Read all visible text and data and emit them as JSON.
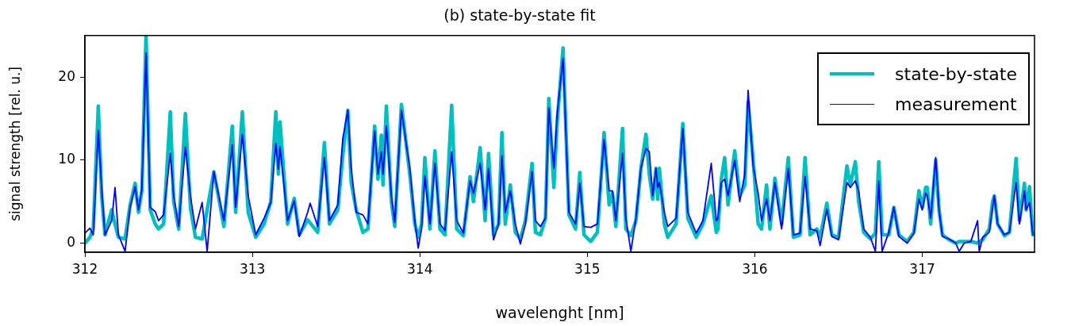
{
  "chart_data": {
    "type": "line",
    "title": "(b) state-by-state fit",
    "xlabel": "wavelenght [nm]",
    "ylabel": "signal strength [rel. u.]",
    "xlim": [
      312,
      317.67
    ],
    "ylim": [
      -1.1,
      25
    ],
    "xticks": [
      312,
      313,
      314,
      315,
      316,
      317
    ],
    "yticks": [
      0,
      10,
      20
    ],
    "grid": false,
    "legend": "top right",
    "marker": "none",
    "line_style": "solid",
    "series": [
      {
        "name": "state-by-state",
        "color": "#00bfbf",
        "x": [
          312.0,
          312.03,
          312.05,
          312.08,
          312.1,
          312.12,
          312.16,
          312.18,
          312.2,
          312.24,
          312.27,
          312.3,
          312.32,
          312.34,
          312.365,
          312.39,
          312.42,
          312.44,
          312.47,
          312.51,
          312.53,
          312.56,
          312.6,
          312.63,
          312.66,
          312.7,
          312.73,
          312.77,
          312.83,
          312.88,
          312.9,
          312.94,
          312.975,
          313.02,
          313.07,
          313.11,
          313.14,
          313.155,
          313.165,
          313.21,
          313.25,
          313.28,
          313.33,
          313.39,
          313.43,
          313.46,
          313.51,
          313.54,
          313.57,
          313.59,
          313.62,
          313.66,
          313.69,
          313.73,
          313.75,
          313.77,
          313.78,
          313.8,
          313.83,
          313.85,
          313.89,
          313.94,
          313.97,
          313.99,
          314.01,
          314.03,
          314.06,
          314.09,
          314.12,
          314.15,
          314.19,
          314.22,
          314.26,
          314.3,
          314.32,
          314.36,
          314.39,
          314.41,
          314.44,
          314.47,
          314.49,
          314.51,
          314.54,
          314.57,
          314.6,
          314.63,
          314.67,
          314.69,
          314.72,
          314.75,
          314.77,
          314.8,
          314.82,
          314.855,
          314.89,
          314.93,
          314.955,
          314.98,
          315.02,
          315.06,
          315.1,
          315.13,
          315.15,
          315.17,
          315.21,
          315.23,
          315.26,
          315.29,
          315.32,
          315.35,
          315.37,
          315.39,
          315.41,
          315.42,
          315.43,
          315.46,
          315.48,
          315.53,
          315.57,
          315.6,
          315.65,
          315.69,
          315.74,
          315.77,
          315.78,
          315.8,
          315.82,
          315.84,
          315.88,
          315.91,
          315.94,
          315.96,
          315.99,
          316.02,
          316.04,
          316.07,
          316.09,
          316.12,
          316.16,
          316.2,
          316.23,
          316.27,
          316.3,
          316.33,
          316.37,
          316.39,
          316.43,
          316.46,
          316.5,
          316.55,
          316.57,
          316.6,
          316.62,
          316.65,
          316.69,
          316.72,
          316.74,
          316.76,
          316.8,
          316.83,
          316.86,
          316.91,
          316.95,
          316.98,
          317.0,
          317.02,
          317.03,
          317.05,
          317.08,
          317.1,
          317.12,
          317.16,
          317.2,
          317.22,
          317.25,
          317.29,
          317.33,
          317.36,
          317.4,
          317.42,
          317.43,
          317.45,
          317.49,
          317.52,
          317.56,
          317.58,
          317.61,
          317.62,
          317.64,
          317.66
        ],
        "values": [
          0.0,
          0.7,
          1.7,
          16.5,
          5.7,
          1.0,
          4.0,
          2.3,
          0.7,
          0.5,
          4.6,
          7.2,
          3.7,
          6.3,
          25,
          4.0,
          2.3,
          1.7,
          2.3,
          15.8,
          5.0,
          1.7,
          15.6,
          4.3,
          0.7,
          0.5,
          4.0,
          8.6,
          2.0,
          14.1,
          3.7,
          15.8,
          3.7,
          0.7,
          2.3,
          5.0,
          15.8,
          8.3,
          14.6,
          2.3,
          5.4,
          1.0,
          2.8,
          1.3,
          12.1,
          2.3,
          4.0,
          10.6,
          16.0,
          7.3,
          4.0,
          1.3,
          1.7,
          14.1,
          7.7,
          13.0,
          7.0,
          16.5,
          5.0,
          2.0,
          16.7,
          8.3,
          2.3,
          0.7,
          2.3,
          10.3,
          1.7,
          11.1,
          1.7,
          1.0,
          16.6,
          1.7,
          0.9,
          8.0,
          5.0,
          11.5,
          2.7,
          10.8,
          1.0,
          2.3,
          13.3,
          2.3,
          7.0,
          1.3,
          0.5,
          2.7,
          9.6,
          1.3,
          1.0,
          3.0,
          17.4,
          6.7,
          14.6,
          23.5,
          3.4,
          1.7,
          8.5,
          1.0,
          0.2,
          1.3,
          13.3,
          4.6,
          6.0,
          2.0,
          13.8,
          1.7,
          0.9,
          2.7,
          9.0,
          13.1,
          8.3,
          5.3,
          9.0,
          5.3,
          9.0,
          2.3,
          0.7,
          2.3,
          14.4,
          3.0,
          0.7,
          2.3,
          5.7,
          1.3,
          1.7,
          7.7,
          10.3,
          4.6,
          11.1,
          5.7,
          7.0,
          17.0,
          10.0,
          2.3,
          1.7,
          7.0,
          1.7,
          7.8,
          2.3,
          10.3,
          0.7,
          1.0,
          10.3,
          1.0,
          1.7,
          0.7,
          4.8,
          1.0,
          0.7,
          9.3,
          7.0,
          9.8,
          5.0,
          1.3,
          0.5,
          1.2,
          9.8,
          1.0,
          1.0,
          4.3,
          1.0,
          0.2,
          1.3,
          6.3,
          4.3,
          6.7,
          6.7,
          2.3,
          10.0,
          4.0,
          1.0,
          0.4,
          0.0,
          0.2,
          0.2,
          0.2,
          0.0,
          0.4,
          1.7,
          5.0,
          5.7,
          2.3,
          0.9,
          1.3,
          10.2,
          2.7,
          7.2,
          4.0,
          6.8,
          1.0
        ]
      },
      {
        "name": "measurement",
        "color": "#0000ff",
        "x": [
          312.0,
          312.03,
          312.05,
          312.08,
          312.1,
          312.12,
          312.16,
          312.18,
          312.2,
          312.24,
          312.27,
          312.3,
          312.32,
          312.34,
          312.365,
          312.39,
          312.42,
          312.44,
          312.47,
          312.51,
          312.53,
          312.56,
          312.6,
          312.63,
          312.66,
          312.7,
          312.73,
          312.77,
          312.83,
          312.88,
          312.9,
          312.94,
          312.975,
          313.02,
          313.07,
          313.11,
          313.14,
          313.155,
          313.165,
          313.21,
          313.25,
          313.28,
          313.33,
          313.345,
          313.39,
          313.43,
          313.46,
          313.51,
          313.54,
          313.57,
          313.59,
          313.62,
          313.66,
          313.69,
          313.73,
          313.75,
          313.77,
          313.78,
          313.8,
          313.83,
          313.85,
          313.89,
          313.94,
          313.97,
          313.99,
          314.01,
          314.03,
          314.06,
          314.09,
          314.12,
          314.15,
          314.19,
          314.22,
          314.26,
          314.3,
          314.32,
          314.36,
          314.39,
          314.41,
          314.44,
          314.47,
          314.49,
          314.51,
          314.54,
          314.57,
          314.6,
          314.63,
          314.67,
          314.69,
          314.72,
          314.75,
          314.77,
          314.8,
          314.82,
          314.855,
          314.89,
          314.93,
          314.955,
          314.98,
          315.02,
          315.06,
          315.1,
          315.13,
          315.15,
          315.17,
          315.21,
          315.23,
          315.26,
          315.29,
          315.32,
          315.35,
          315.37,
          315.39,
          315.41,
          315.42,
          315.43,
          315.46,
          315.48,
          315.53,
          315.57,
          315.6,
          315.65,
          315.69,
          315.74,
          315.77,
          315.78,
          315.8,
          315.82,
          315.84,
          315.88,
          315.91,
          315.94,
          315.96,
          315.99,
          316.02,
          316.04,
          316.07,
          316.09,
          316.12,
          316.16,
          316.2,
          316.23,
          316.27,
          316.3,
          316.33,
          316.37,
          316.39,
          316.43,
          316.46,
          316.5,
          316.55,
          316.57,
          316.6,
          316.62,
          316.65,
          316.69,
          316.72,
          316.74,
          316.76,
          316.8,
          316.83,
          316.86,
          316.91,
          316.95,
          316.98,
          317.0,
          317.02,
          317.03,
          317.05,
          317.08,
          317.1,
          317.12,
          317.16,
          317.2,
          317.22,
          317.25,
          317.29,
          317.33,
          317.34,
          317.36,
          317.4,
          317.42,
          317.43,
          317.45,
          317.49,
          317.52,
          317.56,
          317.58,
          317.61,
          317.62,
          317.64,
          317.66
        ],
        "values": [
          1.2,
          1.8,
          1.0,
          13.6,
          6.7,
          1.0,
          2.7,
          6.7,
          1.0,
          -1.0,
          4.3,
          6.8,
          4.0,
          6.5,
          22.9,
          4.3,
          3.8,
          2.7,
          3.4,
          10.8,
          5.7,
          2.0,
          11.6,
          5.7,
          1.7,
          4.9,
          -1.0,
          8.6,
          2.7,
          11.8,
          4.3,
          13.1,
          5.7,
          1.0,
          3.0,
          4.9,
          12.0,
          8.9,
          11.6,
          2.7,
          5.1,
          0.8,
          3.7,
          4.8,
          2.0,
          10.3,
          2.7,
          4.6,
          12.6,
          16.0,
          9.0,
          3.7,
          3.4,
          2.3,
          13.5,
          8.3,
          11.0,
          8.3,
          14.1,
          5.7,
          2.5,
          16.0,
          9.0,
          2.7,
          -0.6,
          1.7,
          8.1,
          2.3,
          9.6,
          2.3,
          1.5,
          11.0,
          2.7,
          1.2,
          7.5,
          6.0,
          9.6,
          4.0,
          9.0,
          0.4,
          2.3,
          10.5,
          3.7,
          6.3,
          2.3,
          -0.1,
          2.3,
          8.6,
          2.7,
          2.0,
          3.0,
          16.3,
          9.0,
          15.6,
          22.3,
          3.7,
          2.3,
          7.2,
          2.0,
          1.9,
          2.3,
          12.5,
          6.3,
          6.3,
          2.7,
          10.8,
          3.0,
          -1.0,
          3.0,
          9.0,
          11.4,
          11.0,
          5.7,
          9.0,
          6.7,
          7.3,
          3.7,
          2.0,
          3.0,
          13.8,
          3.7,
          1.2,
          2.7,
          9.6,
          2.7,
          3.0,
          7.3,
          7.7,
          5.7,
          10.0,
          5.0,
          8.3,
          18.4,
          9.3,
          6.0,
          2.7,
          5.3,
          2.7,
          7.3,
          1.7,
          9.0,
          1.0,
          1.2,
          8.0,
          1.7,
          1.5,
          -0.3,
          4.1,
          0.8,
          0.4,
          7.3,
          6.7,
          7.5,
          6.3,
          1.7,
          0.7,
          -1.0,
          7.5,
          -1.0,
          1.3,
          4.3,
          0.8,
          0.0,
          1.2,
          5.3,
          4.0,
          6.0,
          5.7,
          3.0,
          10.3,
          4.0,
          0.8,
          0.5,
          0.0,
          -1.0,
          0.0,
          0.2,
          2.7,
          -1.0,
          0.7,
          1.3,
          4.3,
          5.7,
          2.3,
          1.0,
          1.3,
          7.3,
          2.3,
          6.3,
          4.0,
          4.9,
          1.0
        ]
      }
    ]
  }
}
